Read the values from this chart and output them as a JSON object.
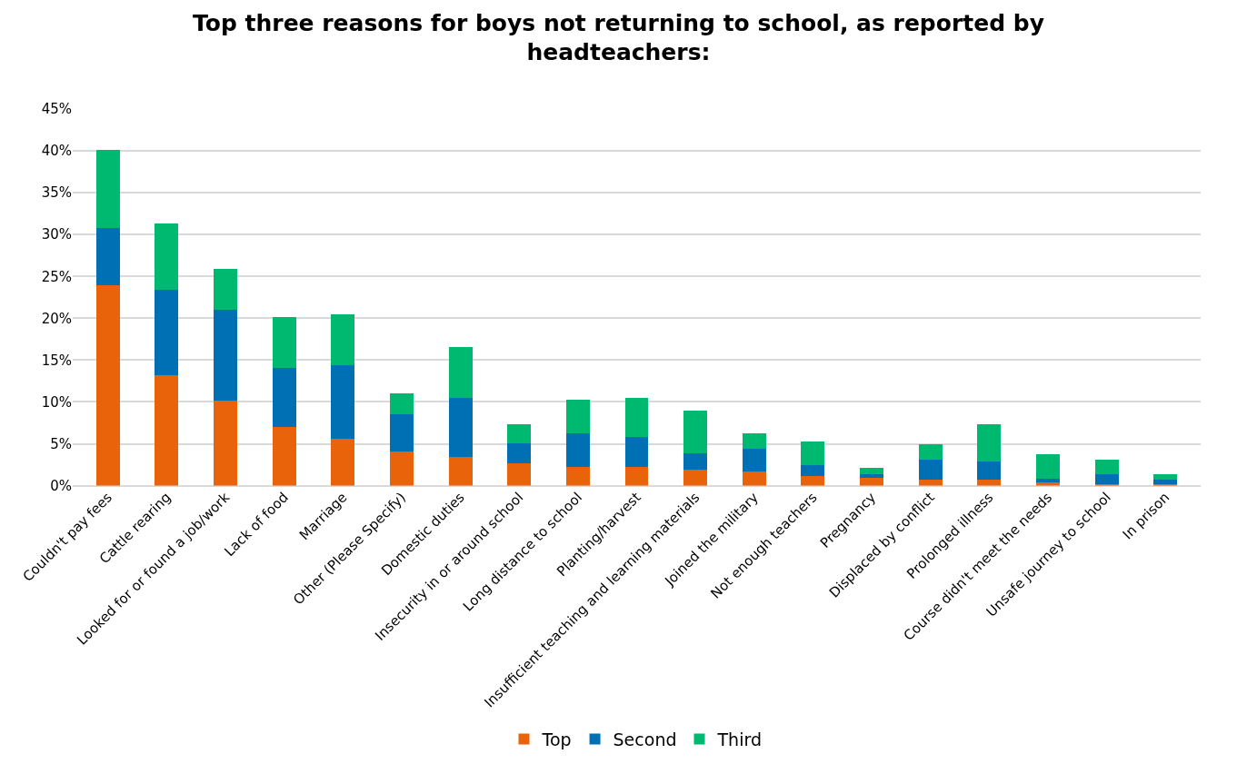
{
  "chart_data": {
    "type": "bar",
    "title": "Top three reasons for boys not returning to school, as reported by headteachers:",
    "stacked": true,
    "categories": [
      "Couldn't pay fees",
      "Cattle rearing",
      "Looked for or found a job/work",
      "Lack of food",
      "Marriage",
      "Other (Please Specify)",
      "Domestic duties",
      "Insecurity in or around school",
      "Long distance to school",
      "Planting/harvest",
      "Insufficient teaching and learning materials",
      "Joined the military",
      "Not enough teachers",
      "Pregnancy",
      "Displaced by conflict",
      "Prolonged illness",
      "Course didn't meet the needs",
      "Unsafe journey to school",
      "In prison"
    ],
    "series": [
      {
        "name": "Top",
        "color": "#e8630a",
        "values": [
          23.9,
          13.2,
          10.2,
          7.0,
          5.6,
          4.1,
          3.4,
          2.7,
          2.2,
          2.2,
          1.9,
          1.7,
          1.2,
          0.9,
          0.7,
          0.7,
          0.4,
          0.2,
          0.2
        ]
      },
      {
        "name": "Second",
        "color": "#0070b5",
        "values": [
          6.9,
          10.2,
          10.8,
          7.1,
          8.8,
          4.4,
          7.1,
          2.4,
          4.1,
          3.6,
          2.0,
          2.7,
          1.2,
          0.5,
          2.4,
          2.2,
          0.4,
          1.2,
          0.5
        ]
      },
      {
        "name": "Third",
        "color": "#00b971",
        "values": [
          9.3,
          7.9,
          4.9,
          6.0,
          6.1,
          2.5,
          6.1,
          2.2,
          4.0,
          4.7,
          5.1,
          1.9,
          2.9,
          0.7,
          1.8,
          4.4,
          3.0,
          1.7,
          0.7
        ]
      }
    ],
    "ylim": [
      0,
      45
    ],
    "yticks": [
      {
        "value": 0,
        "label": "0%"
      },
      {
        "value": 5,
        "label": "5%"
      },
      {
        "value": 10,
        "label": "10%"
      },
      {
        "value": 15,
        "label": "15%"
      },
      {
        "value": 20,
        "label": "20%"
      },
      {
        "value": 25,
        "label": "25%"
      },
      {
        "value": 30,
        "label": "30%"
      },
      {
        "value": 35,
        "label": "35%"
      },
      {
        "value": 40,
        "label": "40%"
      },
      {
        "value": 45,
        "label": "45%"
      }
    ],
    "grid": "y",
    "legend": "bottom"
  }
}
